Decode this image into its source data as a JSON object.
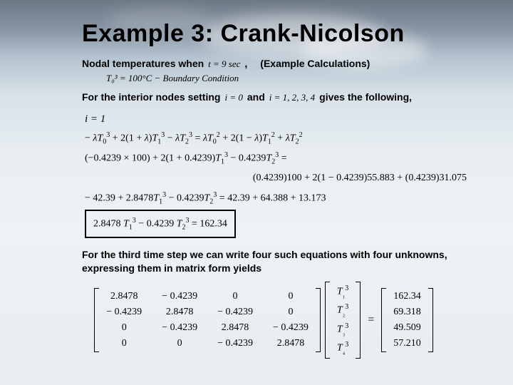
{
  "title": "Example 3: Crank-Nicolson",
  "line1": {
    "a": "Nodal temperatures when",
    "math": "t = 9 sec",
    "b": ",",
    "c": "(Example Calculations)"
  },
  "bc": "T₀³ = 100°C − Boundary Condition",
  "line2": {
    "a": "For the interior nodes setting",
    "math1": "i = 0",
    "b": "and",
    "math2": "i = 1, 2, 3, 4",
    "c": "gives the following,"
  },
  "ilabel": "i = 1",
  "eqs": {
    "r1": "− λT₀³ + 2(1 + λ)T₁³ − λT₂³ = λT₀² + 2(1 − λ)T₁² + λT₂²",
    "r2": "(−0.4239 × 100) + 2(1 + 0.4239)T₁³ − 0.4239T₂³ =",
    "r2b": "(0.4239)100 + 2(1 − 0.4239)55.883 + (0.4239)31.075",
    "r3": "− 42.39 + 2.8478T₁³ − 0.4239T₂³ = 42.39 + 64.388 + 13.173",
    "boxed": "2.8478 T₁³ − 0.4239 T₂³ = 162.34"
  },
  "para": "For the third time step we can write four such equations with four unknowns, expressing them in matrix form yields",
  "matrix": {
    "A": [
      [
        "2.8478",
        "− 0.4239",
        "0",
        "0"
      ],
      [
        "− 0.4239",
        "2.8478",
        "− 0.4239",
        "0"
      ],
      [
        "0",
        "− 0.4239",
        "2.8478",
        "− 0.4239"
      ],
      [
        "0",
        "0",
        "− 0.4239",
        "2.8478"
      ]
    ],
    "x": [
      "T₁³",
      "T₂³",
      "T₃³",
      "T₄³"
    ],
    "b": [
      "162.34",
      "69.318",
      "49.509",
      "57.210"
    ]
  }
}
